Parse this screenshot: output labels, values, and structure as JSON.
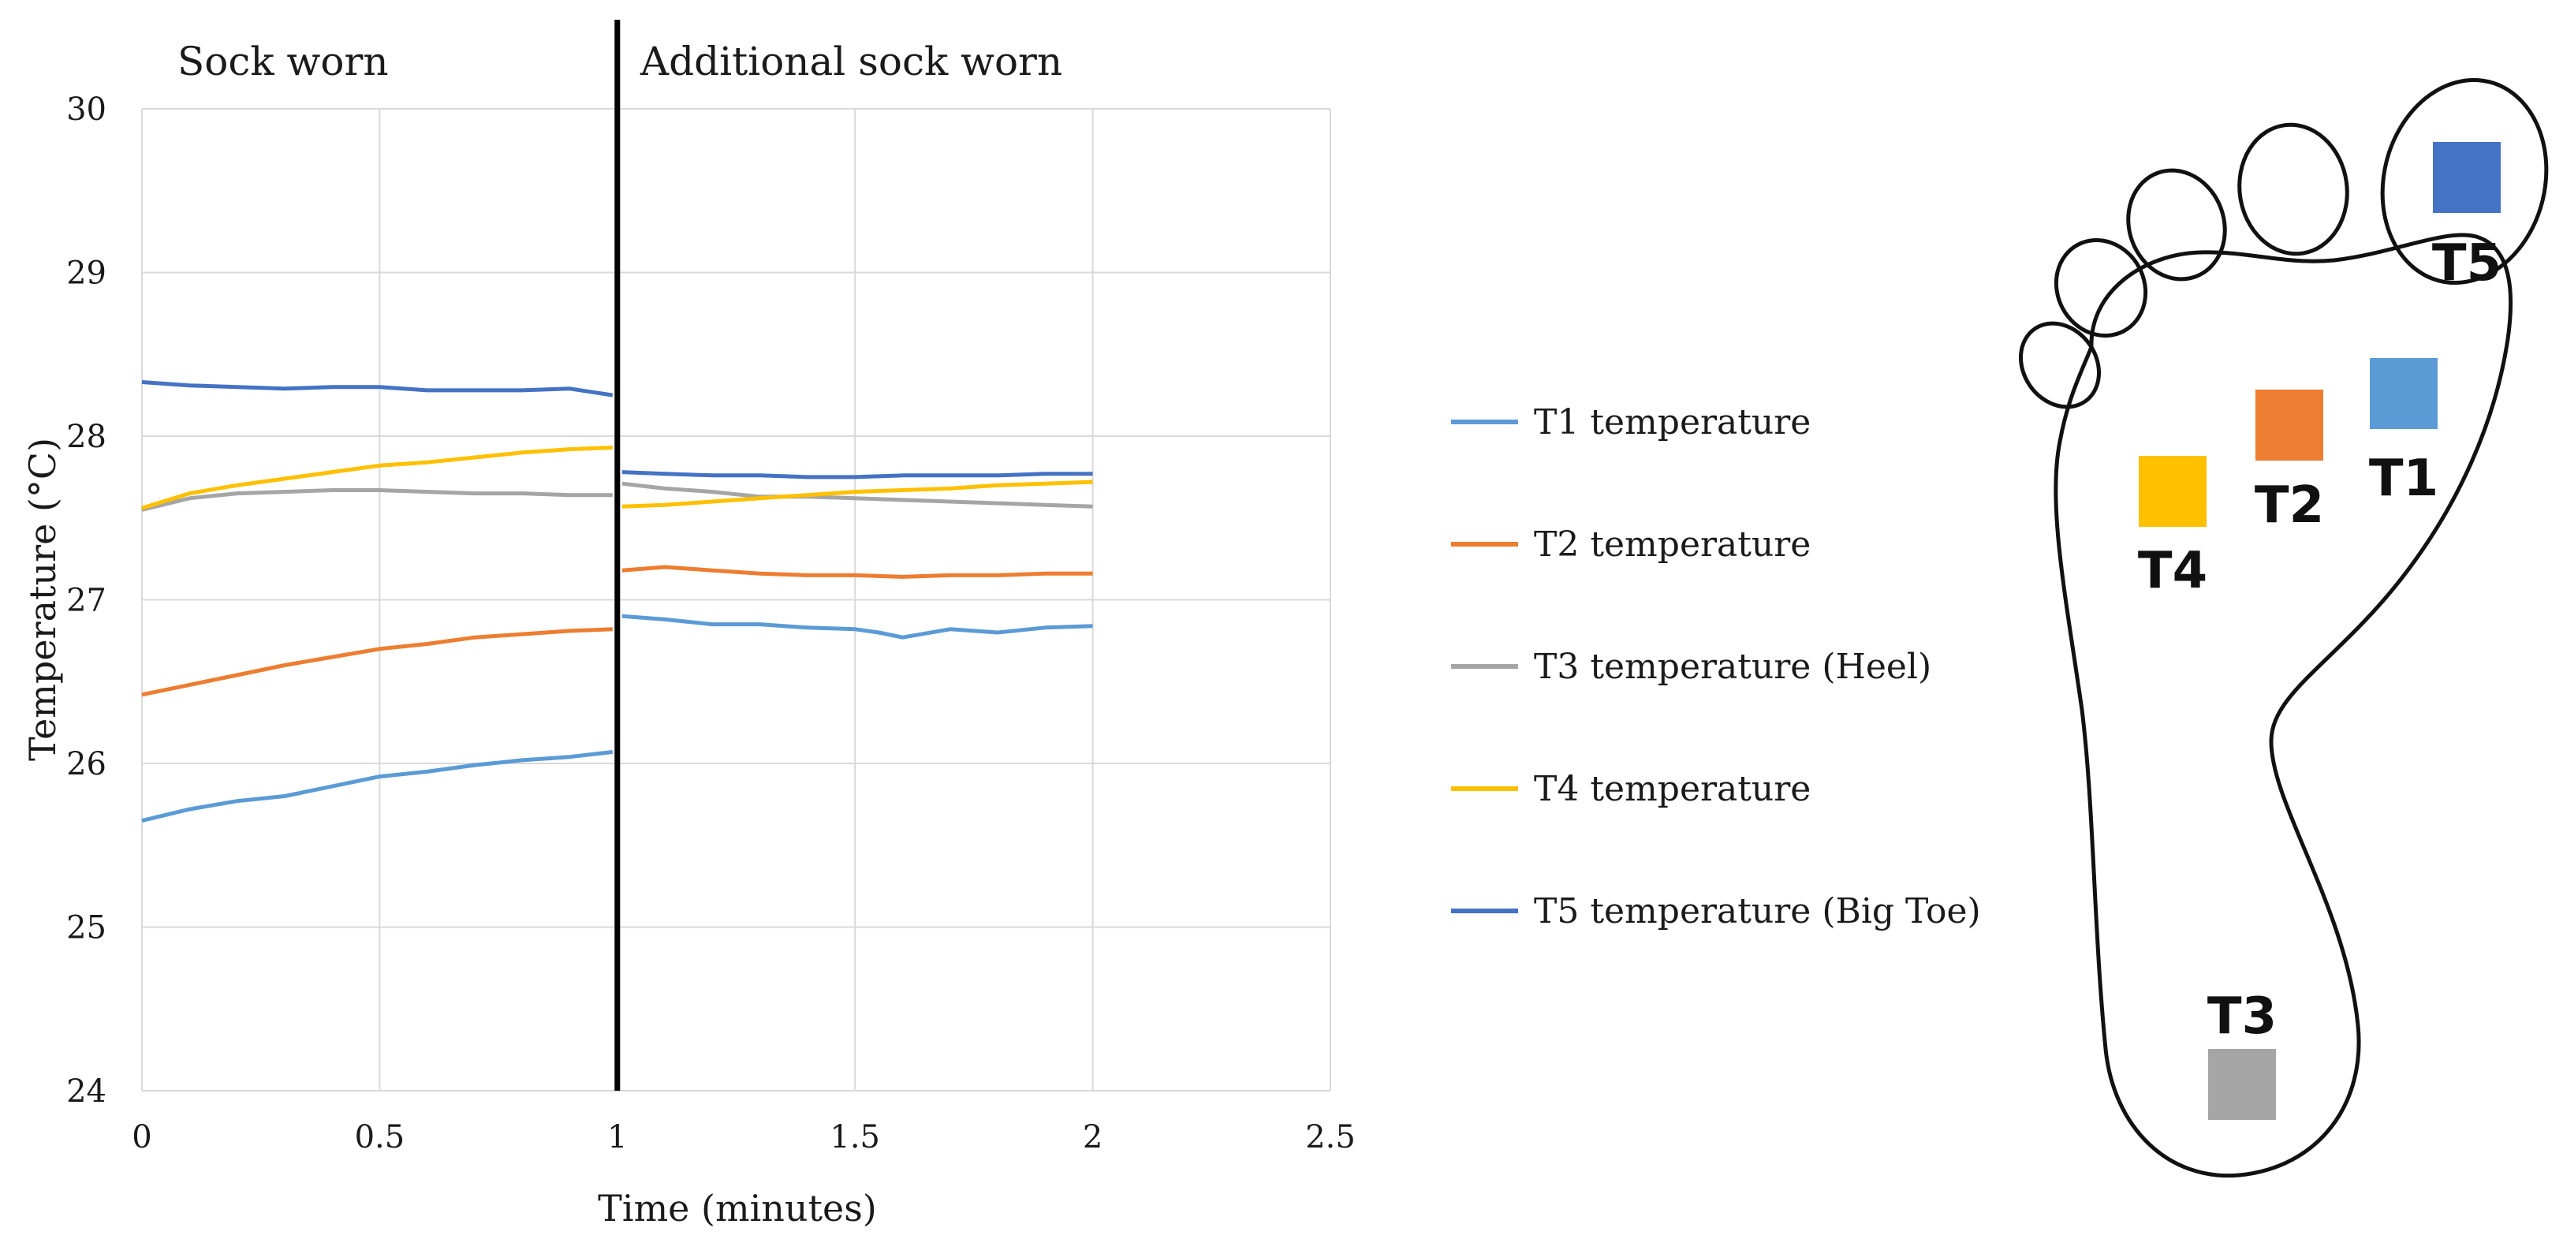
{
  "chart_data": {
    "type": "line",
    "title": "",
    "xlabel": "Time (minutes)",
    "ylabel": "Temperature (°C)",
    "xlim": [
      0,
      2.5
    ],
    "ylim": [
      24,
      30
    ],
    "x_ticks": [
      "0",
      "0.5",
      "1",
      "1.5",
      "2",
      "2.5"
    ],
    "y_ticks": [
      "24",
      "25",
      "26",
      "27",
      "28",
      "29",
      "30"
    ],
    "grid": true,
    "legend_position": "right",
    "phase_divider_x": 1,
    "phase_labels": [
      "Sock worn",
      "Additional sock worn"
    ],
    "series": [
      {
        "name": "T1 temperature",
        "color": "#5b9bd5",
        "x": [
          0,
          0.1,
          0.2,
          0.3,
          0.4,
          0.5,
          0.6,
          0.7,
          0.8,
          0.9,
          0.99,
          1.01,
          1.1,
          1.2,
          1.3,
          1.4,
          1.5,
          1.55,
          1.6,
          1.7,
          1.8,
          1.9,
          2.0
        ],
        "y": [
          25.65,
          25.72,
          25.77,
          25.8,
          25.86,
          25.92,
          25.95,
          25.99,
          26.02,
          26.04,
          26.07,
          26.9,
          26.88,
          26.85,
          26.85,
          26.83,
          26.82,
          26.8,
          26.77,
          26.82,
          26.8,
          26.83,
          26.84
        ]
      },
      {
        "name": "T2 temperature",
        "color": "#ed7d31",
        "x": [
          0,
          0.1,
          0.2,
          0.3,
          0.4,
          0.5,
          0.6,
          0.7,
          0.8,
          0.9,
          0.99,
          1.01,
          1.1,
          1.2,
          1.3,
          1.4,
          1.5,
          1.6,
          1.7,
          1.8,
          1.9,
          2.0
        ],
        "y": [
          26.42,
          26.48,
          26.54,
          26.6,
          26.65,
          26.7,
          26.73,
          26.77,
          26.79,
          26.81,
          26.82,
          27.18,
          27.2,
          27.18,
          27.16,
          27.15,
          27.15,
          27.14,
          27.15,
          27.15,
          27.16,
          27.16
        ]
      },
      {
        "name": "T3 temperature (Heel)",
        "color": "#a5a5a5",
        "x": [
          0,
          0.1,
          0.2,
          0.3,
          0.4,
          0.5,
          0.6,
          0.7,
          0.8,
          0.9,
          0.99,
          1.01,
          1.1,
          1.2,
          1.3,
          1.4,
          1.5,
          1.6,
          1.7,
          1.8,
          1.9,
          2.0
        ],
        "y": [
          27.55,
          27.62,
          27.65,
          27.66,
          27.67,
          27.67,
          27.66,
          27.65,
          27.65,
          27.64,
          27.64,
          27.71,
          27.68,
          27.66,
          27.63,
          27.63,
          27.62,
          27.61,
          27.6,
          27.59,
          27.58,
          27.57
        ]
      },
      {
        "name": "T4 temperature",
        "color": "#ffc000",
        "x": [
          0,
          0.1,
          0.2,
          0.3,
          0.4,
          0.5,
          0.6,
          0.7,
          0.8,
          0.9,
          0.99,
          1.01,
          1.1,
          1.2,
          1.3,
          1.4,
          1.5,
          1.6,
          1.7,
          1.8,
          1.9,
          2.0
        ],
        "y": [
          27.56,
          27.65,
          27.7,
          27.74,
          27.78,
          27.82,
          27.84,
          27.87,
          27.9,
          27.92,
          27.93,
          27.57,
          27.58,
          27.6,
          27.62,
          27.64,
          27.66,
          27.67,
          27.68,
          27.7,
          27.71,
          27.72
        ]
      },
      {
        "name": "T5 temperature (Big Toe)",
        "color": "#4472c4",
        "x": [
          0,
          0.1,
          0.2,
          0.3,
          0.4,
          0.5,
          0.6,
          0.7,
          0.8,
          0.9,
          0.99,
          1.01,
          1.1,
          1.2,
          1.3,
          1.4,
          1.5,
          1.6,
          1.7,
          1.8,
          1.9,
          2.0
        ],
        "y": [
          28.33,
          28.31,
          28.3,
          28.29,
          28.3,
          28.3,
          28.28,
          28.28,
          28.28,
          28.29,
          28.25,
          27.78,
          27.77,
          27.76,
          27.76,
          27.75,
          27.75,
          27.76,
          27.76,
          27.76,
          27.77,
          27.77
        ]
      }
    ]
  },
  "foot_diagram": {
    "sensors": [
      {
        "label": "T5",
        "color": "#4472c4"
      },
      {
        "label": "T1",
        "color": "#5b9bd5"
      },
      {
        "label": "T2",
        "color": "#ed7d31"
      },
      {
        "label": "T4",
        "color": "#ffc000"
      },
      {
        "label": "T3",
        "color": "#a5a5a5"
      }
    ]
  }
}
